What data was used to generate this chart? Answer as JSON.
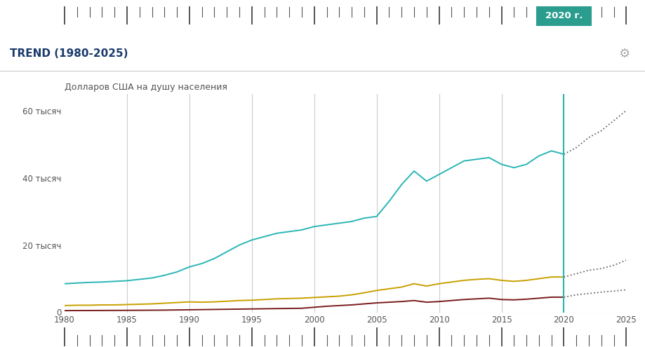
{
  "title": "TREND (1980-2025)",
  "ylabel": "Долларов США на душу населения",
  "year_start": 1980,
  "year_end": 2025,
  "vline_year": 2020,
  "vline_label": "2020 г.",
  "vgrid_years": [
    1985,
    1990,
    1995,
    2000,
    2005,
    2010,
    2015,
    2020
  ],
  "yticks": [
    0,
    20000,
    40000,
    60000
  ],
  "ytick_labels": [
    "0",
    "20 тысяч",
    "40 тысяч",
    "60 тысяч"
  ],
  "xticks": [
    1980,
    1985,
    1990,
    1995,
    2000,
    2005,
    2010,
    2015,
    2020,
    2025
  ],
  "bg_color": "#ffffff",
  "line_teal_color": "#2ab5b5",
  "line_gold_color": "#c8a000",
  "line_dark_red_color": "#7a1c1c",
  "dotted_color": "#666666",
  "vline_color": "#2ab5b5",
  "vline_label_bg": "#2a9d8f",
  "vline_label_fg": "#ffffff",
  "grid_color": "#cccccc",
  "ruler_color": "#555555",
  "title_color": "#1a3a6b",
  "text_color": "#555555",
  "gear_color": "#aaaaaa",
  "ylim": [
    0,
    65000
  ],
  "xlim": [
    1980,
    2025
  ],
  "teal_data": {
    "years": [
      1980,
      1981,
      1982,
      1983,
      1984,
      1985,
      1986,
      1987,
      1988,
      1989,
      1990,
      1991,
      1992,
      1993,
      1994,
      1995,
      1996,
      1997,
      1998,
      1999,
      2000,
      2001,
      2002,
      2003,
      2004,
      2005,
      2006,
      2007,
      2008,
      2009,
      2010,
      2011,
      2012,
      2013,
      2014,
      2015,
      2016,
      2017,
      2018,
      2019,
      2020
    ],
    "values": [
      8500,
      8700,
      8900,
      9000,
      9200,
      9400,
      9800,
      10200,
      11000,
      12000,
      13500,
      14500,
      16000,
      18000,
      20000,
      21500,
      22500,
      23500,
      24000,
      24500,
      25500,
      26000,
      26500,
      27000,
      28000,
      28500,
      33000,
      38000,
      42000,
      39000,
      41000,
      43000,
      45000,
      45500,
      46000,
      44000,
      43000,
      44000,
      46500,
      48000,
      47000
    ],
    "dot_years": [
      2020,
      2021,
      2022,
      2023,
      2024,
      2025
    ],
    "dot_values": [
      47000,
      49000,
      52000,
      54000,
      57000,
      60000
    ]
  },
  "gold_data": {
    "years": [
      1980,
      1981,
      1982,
      1983,
      1984,
      1985,
      1986,
      1987,
      1988,
      1989,
      1990,
      1991,
      1992,
      1993,
      1994,
      1995,
      1996,
      1997,
      1998,
      1999,
      2000,
      2001,
      2002,
      2003,
      2004,
      2005,
      2006,
      2007,
      2008,
      2009,
      2010,
      2011,
      2012,
      2013,
      2014,
      2015,
      2016,
      2017,
      2018,
      2019,
      2020
    ],
    "values": [
      2000,
      2100,
      2100,
      2200,
      2200,
      2300,
      2400,
      2500,
      2700,
      2900,
      3100,
      3000,
      3100,
      3300,
      3500,
      3600,
      3800,
      4000,
      4100,
      4200,
      4400,
      4600,
      4800,
      5200,
      5800,
      6500,
      7000,
      7500,
      8500,
      7800,
      8500,
      9000,
      9500,
      9800,
      10000,
      9500,
      9200,
      9500,
      10000,
      10500,
      10500
    ],
    "dot_years": [
      2020,
      2021,
      2022,
      2023,
      2024,
      2025
    ],
    "dot_values": [
      10500,
      11500,
      12500,
      13000,
      14000,
      15500
    ]
  },
  "darkred_data": {
    "years": [
      1980,
      1981,
      1982,
      1983,
      1984,
      1985,
      1986,
      1987,
      1988,
      1989,
      1990,
      1991,
      1992,
      1993,
      1994,
      1995,
      1996,
      1997,
      1998,
      1999,
      2000,
      2001,
      2002,
      2003,
      2004,
      2005,
      2006,
      2007,
      2008,
      2009,
      2010,
      2011,
      2012,
      2013,
      2014,
      2015,
      2016,
      2017,
      2018,
      2019,
      2020
    ],
    "values": [
      500,
      520,
      530,
      540,
      560,
      580,
      600,
      620,
      650,
      700,
      750,
      800,
      850,
      900,
      950,
      1000,
      1050,
      1100,
      1150,
      1200,
      1500,
      1800,
      2000,
      2200,
      2500,
      2800,
      3000,
      3200,
      3500,
      3000,
      3200,
      3500,
      3800,
      4000,
      4200,
      3800,
      3700,
      3900,
      4200,
      4500,
      4500
    ],
    "dot_years": [
      2020,
      2021,
      2022,
      2023,
      2024,
      2025
    ],
    "dot_values": [
      4500,
      5200,
      5600,
      6000,
      6300,
      6700
    ]
  }
}
